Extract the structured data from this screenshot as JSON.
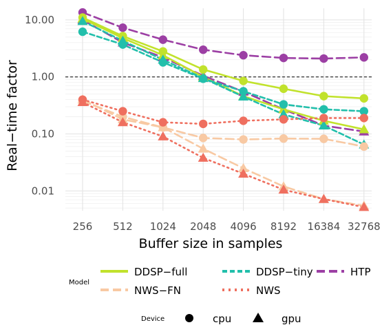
{
  "chart_data": {
    "type": "line",
    "title": "",
    "xlabel": "Buffer size in samples",
    "ylabel": "Real−time factor",
    "x_scale": "log2",
    "y_scale": "log10",
    "categories": [
      "256",
      "512",
      "1024",
      "2048",
      "4096",
      "8192",
      "16384",
      "32768"
    ],
    "yticks": [
      "0.01",
      "0.10",
      "1.00",
      "10.00"
    ],
    "yticks_values": [
      0.01,
      0.1,
      1,
      10
    ],
    "ylim": [
      0.0045,
      16
    ],
    "reference_line": {
      "y": 1,
      "style": "dashed",
      "color": "#000000"
    },
    "grid": true,
    "legend": {
      "model_title": "Model",
      "device_title": "Device",
      "placement": "bottom",
      "models": [
        {
          "name": "DDSP−full",
          "color": "#c1e22c",
          "dash": "solid"
        },
        {
          "name": "DDSP−tiny",
          "color": "#22bfab",
          "dash": "dashed"
        },
        {
          "name": "HTP",
          "color": "#9c3fa4",
          "dash": "longdash"
        },
        {
          "name": "NWS−FN",
          "color": "#f8c9a3",
          "dash": "longdash-light"
        },
        {
          "name": "NWS",
          "color": "#ef6f5f",
          "dash": "dotted"
        }
      ],
      "devices": [
        {
          "name": "cpu",
          "shape": "circle"
        },
        {
          "name": "gpu",
          "shape": "triangle"
        }
      ]
    },
    "series": [
      {
        "name": "HTP",
        "device": "cpu",
        "values": [
          13.5,
          7.3,
          4.5,
          3.0,
          2.4,
          2.15,
          2.1,
          2.2
        ]
      },
      {
        "name": "HTP",
        "device": "gpu",
        "values": [
          10.0,
          4.0,
          2.2,
          1.05,
          0.55,
          0.27,
          0.14,
          0.11
        ]
      },
      {
        "name": "DDSP−full",
        "device": "cpu",
        "values": [
          11.0,
          5.2,
          2.8,
          1.35,
          0.85,
          0.62,
          0.46,
          0.42
        ]
      },
      {
        "name": "DDSP−full",
        "device": "gpu",
        "values": [
          10.5,
          4.8,
          2.4,
          1.0,
          0.46,
          0.27,
          0.17,
          0.12
        ]
      },
      {
        "name": "DDSP−tiny",
        "device": "cpu",
        "values": [
          6.2,
          3.7,
          1.8,
          0.93,
          0.56,
          0.33,
          0.27,
          0.25
        ]
      },
      {
        "name": "DDSP−tiny",
        "device": "gpu",
        "values": [
          9.5,
          4.3,
          2.0,
          0.95,
          0.45,
          0.22,
          0.14,
          0.065
        ]
      },
      {
        "name": "NWS−FN",
        "device": "cpu",
        "values": [
          0.38,
          0.2,
          0.13,
          0.085,
          0.08,
          0.083,
          0.082,
          0.06
        ]
      },
      {
        "name": "NWS−FN",
        "device": "gpu",
        "values": [
          0.4,
          0.18,
          0.13,
          0.055,
          0.025,
          0.012,
          0.0072,
          0.0055
        ]
      },
      {
        "name": "NWS",
        "device": "cpu",
        "values": [
          0.4,
          0.25,
          0.16,
          0.15,
          0.17,
          0.18,
          0.19,
          0.19
        ]
      },
      {
        "name": "NWS",
        "device": "gpu",
        "values": [
          0.36,
          0.16,
          0.09,
          0.038,
          0.02,
          0.0105,
          0.0072,
          0.0052
        ]
      }
    ]
  }
}
